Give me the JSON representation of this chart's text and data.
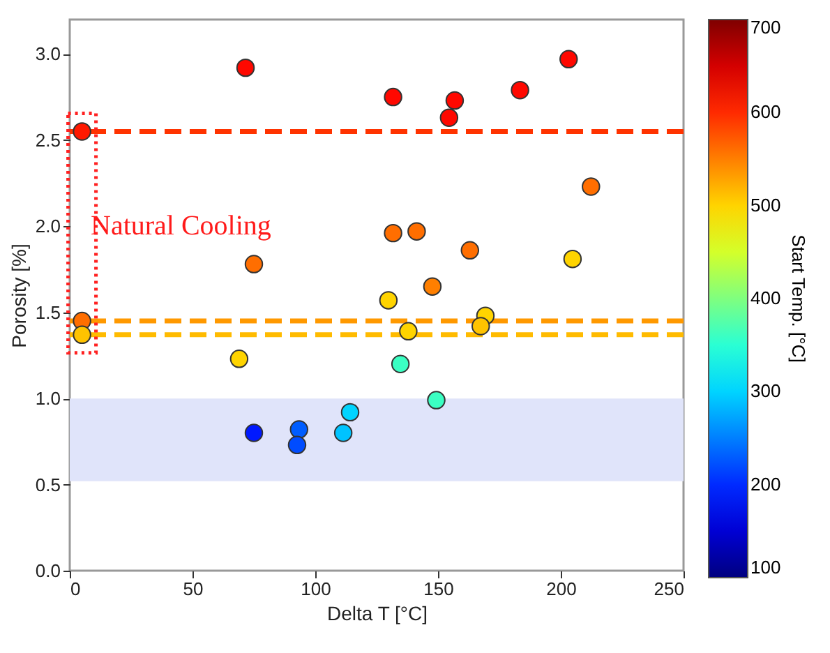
{
  "chart_data": {
    "type": "scatter",
    "xlabel": "Delta T [°C]",
    "ylabel": "Porosity [%]",
    "clabel": "Start Temp. [°C]",
    "x": [
      71.6,
      5,
      75,
      131.7,
      156.8,
      154.5,
      183.4,
      203.2,
      212.3,
      131.7,
      141.3,
      163,
      204.8,
      147.7,
      129.8,
      5,
      5,
      69,
      75,
      93.4,
      92.6,
      111.4,
      114.2,
      137.9,
      134.7,
      149.3,
      169.3,
      167.4
    ],
    "series": [
      {
        "values": [
          2.92,
          2.55,
          1.78,
          2.75,
          2.73,
          2.63,
          2.79,
          2.97,
          2.23,
          1.96,
          1.97,
          1.86,
          1.81,
          1.65,
          1.57,
          1.45,
          1.37,
          1.23,
          0.8,
          0.82,
          0.73,
          0.8,
          0.92,
          1.39,
          1.2,
          0.99,
          1.48,
          1.42
        ],
        "cvalues": [
          620,
          610,
          560,
          620,
          620,
          620,
          620,
          620,
          560,
          560,
          560,
          560,
          500,
          550,
          500,
          560,
          510,
          500,
          190,
          230,
          220,
          290,
          300,
          500,
          360,
          360,
          500,
          510
        ]
      }
    ],
    "xlim": [
      0,
      250
    ],
    "xticks": [
      0,
      50,
      100,
      150,
      200,
      250
    ],
    "ylim": [
      0,
      3.2
    ],
    "yticks": [
      {
        "value": 0,
        "label": "0.0"
      },
      {
        "value": 0.5,
        "label": "0.5"
      },
      {
        "value": 1,
        "label": "1.0"
      },
      {
        "value": 1.5,
        "label": "1.5"
      },
      {
        "value": 2,
        "label": "2.0"
      },
      {
        "value": 2.5,
        "label": "2.5"
      },
      {
        "value": 3,
        "label": "3.0"
      }
    ],
    "clim": [
      100,
      700
    ],
    "cticks": [
      100,
      200,
      300,
      400,
      500,
      600,
      700
    ],
    "marker": "circle",
    "grid": false,
    "ref_lines": [
      {
        "axis": "y",
        "value": 2.55,
        "color": "#ff3300",
        "line_style": "dashed"
      },
      {
        "axis": "y",
        "value": 1.45,
        "color": "#ff9900",
        "line_style": "dashed"
      },
      {
        "axis": "y",
        "value": 1.37,
        "color": "#ffbb00",
        "line_style": "dashed"
      }
    ],
    "bands": [
      {
        "axis": "y",
        "from": 0.52,
        "to": 1.0,
        "color": "#e0e4fa"
      }
    ],
    "annotations": [
      "Natural Cooling"
    ]
  }
}
